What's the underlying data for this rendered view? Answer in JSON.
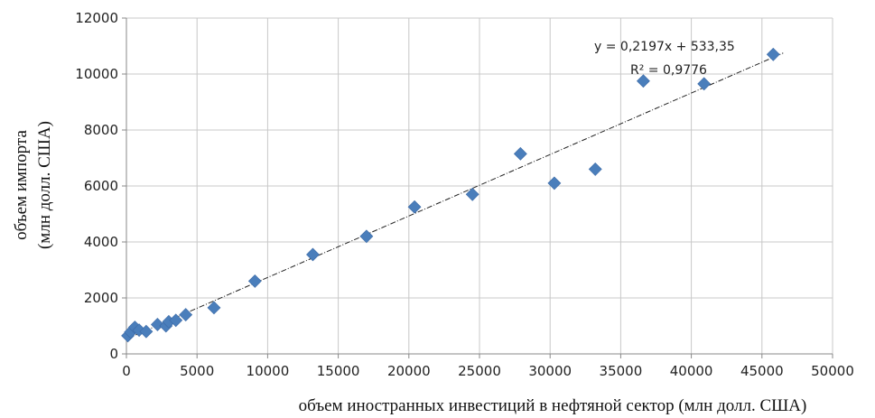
{
  "chart_data": {
    "type": "scatter",
    "xlabel": "объем иностранных инвестиций в нефтяной сектор (млн долл. США)",
    "ylabel_lines": [
      "объем импорта",
      "(млн долл. США)"
    ],
    "xlim": [
      0,
      50000
    ],
    "ylim": [
      0,
      12000
    ],
    "xticks": [
      0,
      5000,
      10000,
      15000,
      20000,
      25000,
      30000,
      35000,
      40000,
      45000,
      50000
    ],
    "yticks": [
      0,
      2000,
      4000,
      6000,
      8000,
      10000,
      12000
    ],
    "grid": true,
    "marker_color": "#4a7ebb",
    "points": [
      {
        "x": 100,
        "y": 650
      },
      {
        "x": 300,
        "y": 780
      },
      {
        "x": 600,
        "y": 950
      },
      {
        "x": 900,
        "y": 850
      },
      {
        "x": 1400,
        "y": 800
      },
      {
        "x": 2200,
        "y": 1050
      },
      {
        "x": 2800,
        "y": 1000
      },
      {
        "x": 3000,
        "y": 1150
      },
      {
        "x": 3500,
        "y": 1200
      },
      {
        "x": 4200,
        "y": 1400
      },
      {
        "x": 6200,
        "y": 1650
      },
      {
        "x": 9100,
        "y": 2600
      },
      {
        "x": 13200,
        "y": 3550
      },
      {
        "x": 17000,
        "y": 4200
      },
      {
        "x": 20400,
        "y": 5250
      },
      {
        "x": 24500,
        "y": 5700
      },
      {
        "x": 27900,
        "y": 7150
      },
      {
        "x": 30300,
        "y": 6100
      },
      {
        "x": 33200,
        "y": 6600
      },
      {
        "x": 36600,
        "y": 9750
      },
      {
        "x": 40900,
        "y": 9650
      },
      {
        "x": 45800,
        "y": 10700
      }
    ],
    "trendline": {
      "slope": 0.2197,
      "intercept": 533.35,
      "x_range": [
        0,
        46500
      ],
      "equation": "y = 0,2197x + 533,35",
      "r2": "R² = 0,9776"
    }
  }
}
